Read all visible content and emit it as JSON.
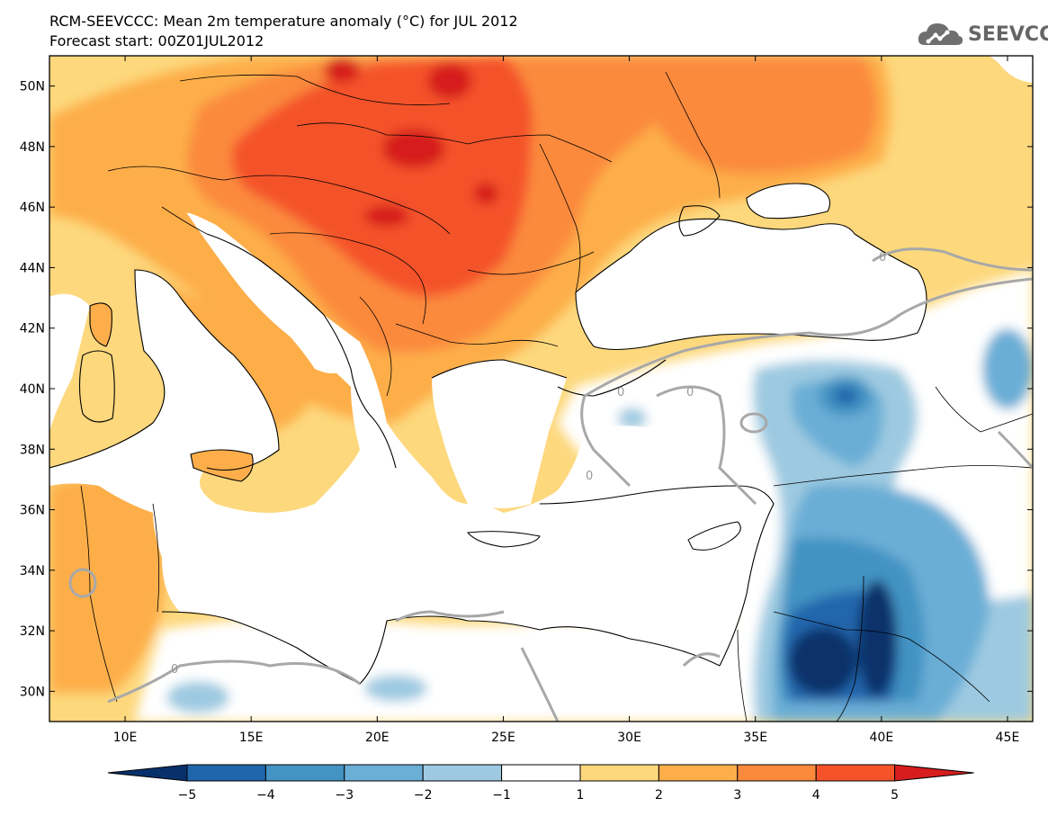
{
  "header": {
    "title": "RCM-SEEVCCC: Mean 2m temperature anomaly (°C) for JUL 2012",
    "subtitle": "Forecast start: 00Z01JUL2012",
    "logo_text": "SEEVCCC"
  },
  "map": {
    "variable": "Mean 2m temperature anomaly",
    "unit": "°C",
    "lon_range": [
      7,
      46
    ],
    "lat_range": [
      29,
      51
    ],
    "lat_ticks": [
      "50N",
      "48N",
      "46N",
      "44N",
      "42N",
      "40N",
      "38N",
      "36N",
      "34N",
      "32N",
      "30N"
    ],
    "lon_ticks": [
      "10E",
      "15E",
      "20E",
      "25E",
      "30E",
      "35E",
      "40E",
      "45E"
    ],
    "contour_label": "0",
    "sea_color": "#ffffff"
  },
  "colorbar": {
    "labels": [
      "−5",
      "−4",
      "−3",
      "−2",
      "−1",
      "1",
      "2",
      "3",
      "4",
      "5"
    ],
    "colors": [
      "#08306b",
      "#2166ac",
      "#4393c3",
      "#6baed6",
      "#9ecae1",
      "#ffffff",
      "#fdd87d",
      "#fdae4a",
      "#fb8a3c",
      "#f4532a",
      "#d61e1e"
    ]
  }
}
